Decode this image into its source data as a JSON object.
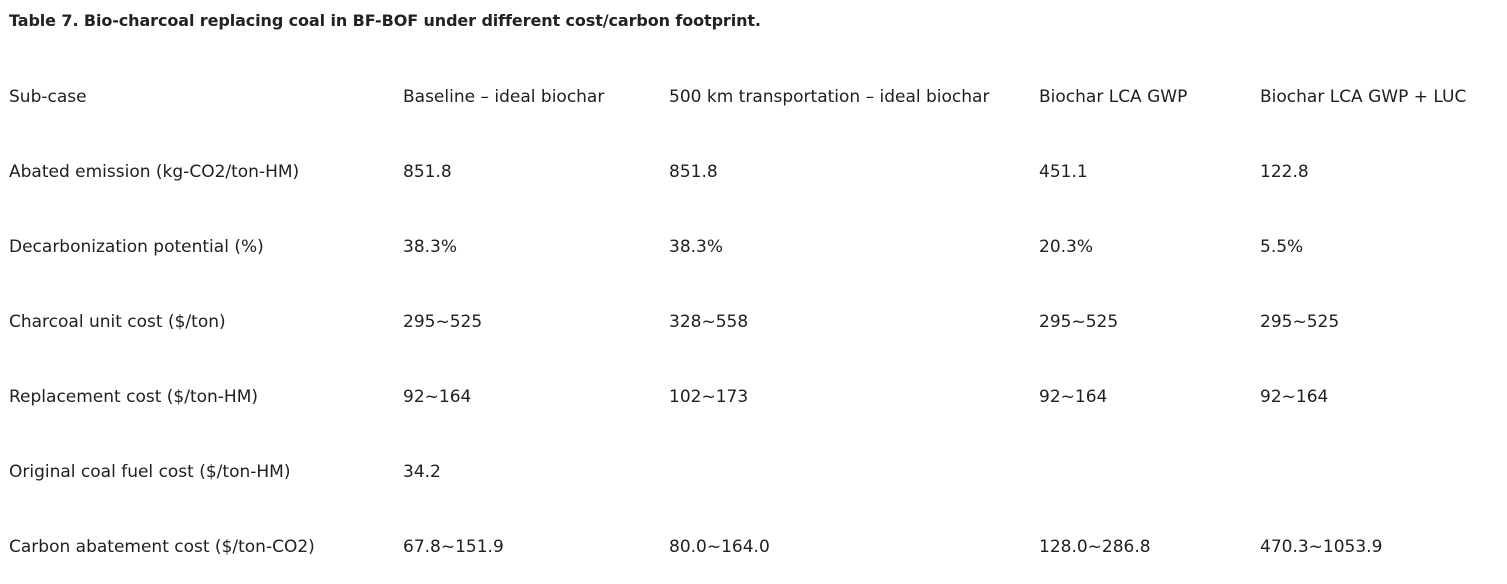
{
  "caption": "Table 7. Bio-charcoal replacing coal in BF-BOF under different cost/carbon footprint.",
  "rows": [
    [
      "Sub-case",
      "Baseline – ideal biochar",
      "500 km transportation – ideal biochar",
      "Biochar LCA GWP",
      "Biochar LCA GWP + LUC"
    ],
    [
      "Abated emission (kg-CO2/ton-HM)",
      "851.8",
      "851.8",
      "451.1",
      "122.8"
    ],
    [
      "Decarbonization potential (%)",
      "38.3%",
      "38.3%",
      "20.3%",
      "5.5%"
    ],
    [
      "Charcoal unit cost ($/ton)",
      "295~525",
      "328~558",
      "295~525",
      "295~525"
    ],
    [
      "Replacement cost ($/ton-HM)",
      "92~164",
      "102~173",
      "92~164",
      "92~164"
    ],
    [
      "Original coal fuel cost ($/ton-HM)",
      "34.2",
      "",
      "",
      ""
    ],
    [
      "Carbon abatement cost ($/ton-CO2)",
      "67.8~151.9",
      "80.0~164.0",
      "128.0~286.8",
      "470.3~1053.9"
    ]
  ]
}
